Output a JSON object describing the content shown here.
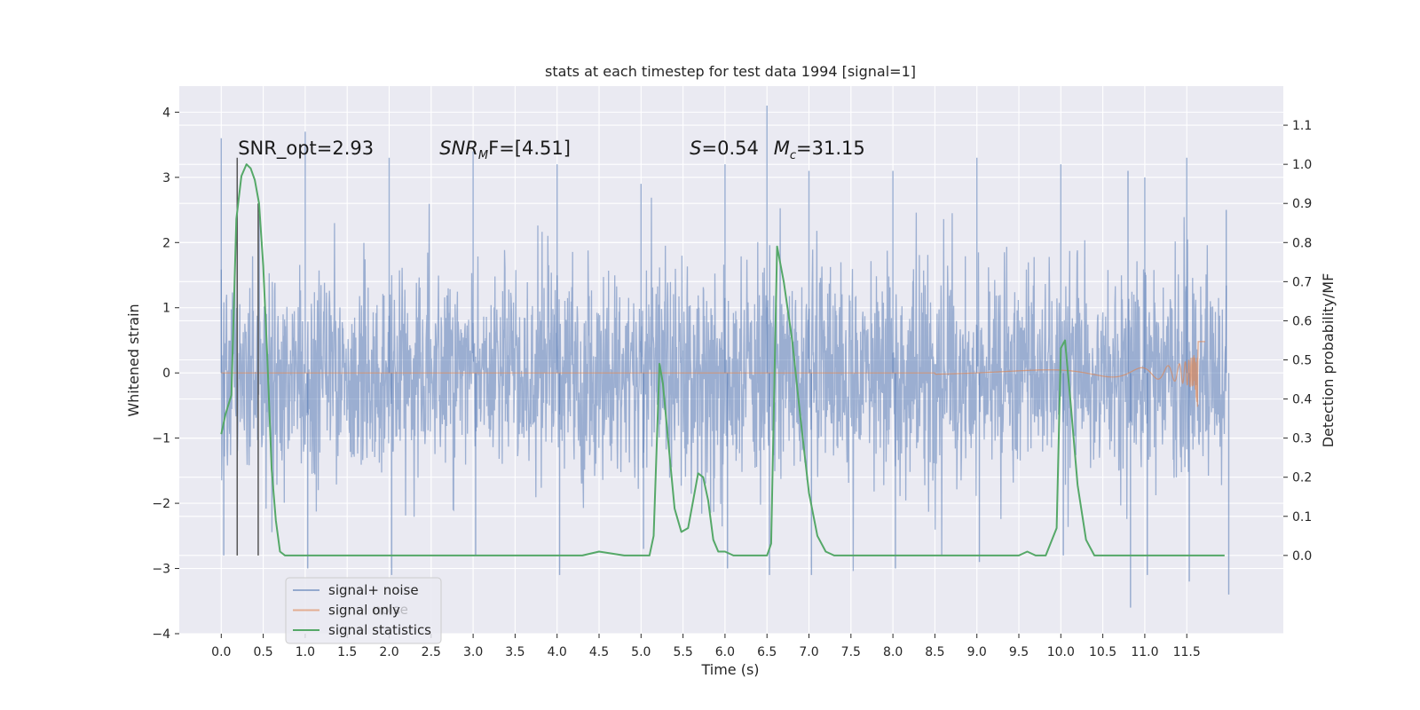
{
  "chart_data": {
    "type": "line",
    "title": "stats at each timestep for test data 1994 [signal=1]",
    "xlabel": "Time (s)",
    "ylabel": "Whitened strain",
    "ylabel_right": "Detection probability/MF",
    "xlim": [
      -0.5,
      12.65
    ],
    "ylim": [
      -4.0,
      4.4
    ],
    "ylim_right": [
      -0.2,
      1.2
    ],
    "x_ticks": [
      0.0,
      0.5,
      1.0,
      1.5,
      2.0,
      2.5,
      3.0,
      3.5,
      4.0,
      4.5,
      5.0,
      5.5,
      6.0,
      6.5,
      7.0,
      7.5,
      8.0,
      8.5,
      9.0,
      9.5,
      10.0,
      10.5,
      11.0,
      11.5
    ],
    "x_tick_labels": [
      "0.0",
      "0.5",
      "1.0",
      "1.5",
      "2.0",
      "2.5",
      "3.0",
      "3.5",
      "4.0",
      "4.5",
      "5.0",
      "5.5",
      "6.0",
      "6.5",
      "7.0",
      "7.5",
      "8.0",
      "8.5",
      "9.0",
      "9.5",
      "10.0",
      "10.5",
      "11.0",
      "11.5"
    ],
    "y_ticks": [
      -4,
      -3,
      -2,
      -1,
      0,
      1,
      2,
      3,
      4
    ],
    "y_tick_labels": [
      "−4",
      "−3",
      "−2",
      "−1",
      "0",
      "1",
      "2",
      "3",
      "4"
    ],
    "y_right_ticks": [
      0.0,
      0.1,
      0.2,
      0.3,
      0.4,
      0.5,
      0.6,
      0.7,
      0.8,
      0.9,
      1.0,
      1.1
    ],
    "y_right_tick_labels": [
      "0.0",
      "0.1",
      "0.2",
      "0.3",
      "0.4",
      "0.5",
      "0.6",
      "0.7",
      "0.8",
      "0.9",
      "1.0",
      "1.1"
    ],
    "grid": true,
    "legend_position": "lower-left",
    "series": [
      {
        "name": "signal+ noise",
        "color": "#4c72b0",
        "description": "dense whitened noise trace, 0.0–12.0 s",
        "envelope": {
          "x": [
            0.0,
            1.0,
            2.0,
            3.0,
            4.0,
            5.0,
            6.0,
            6.5,
            7.0,
            8.0,
            9.0,
            10.0,
            10.8,
            11.0,
            11.5,
            11.97
          ],
          "max": [
            3.6,
            3.7,
            3.3,
            3.4,
            3.2,
            2.9,
            3.2,
            4.1,
            3.1,
            3.1,
            3.3,
            3.2,
            3.1,
            3.0,
            3.3,
            2.5
          ],
          "min": [
            -2.8,
            -3.0,
            -3.1,
            -2.8,
            -3.1,
            -2.7,
            -3.0,
            -3.1,
            -3.1,
            -3.0,
            -2.9,
            -2.8,
            -3.6,
            -3.1,
            -3.2,
            -3.4
          ]
        }
      },
      {
        "name": "signal only",
        "color": "#dd8452",
        "description": "chirp signal, flat near 0 then growing amplitude up to ~0.65 near 11.65 s",
        "chirp": {
          "start": 8.5,
          "peak_time": 11.65,
          "peak_amplitude": 0.65,
          "end": 11.72
        }
      },
      {
        "name": "signal statistics",
        "color": "#55a868",
        "axis": "right",
        "x": [
          0.0,
          0.05,
          0.12,
          0.18,
          0.24,
          0.3,
          0.35,
          0.4,
          0.45,
          0.5,
          0.55,
          0.6,
          0.65,
          0.7,
          0.76,
          0.85,
          1.0,
          1.5,
          2.0,
          2.5,
          3.0,
          3.5,
          4.0,
          4.3,
          4.5,
          4.8,
          5.0,
          5.1,
          5.15,
          5.22,
          5.26,
          5.32,
          5.4,
          5.48,
          5.56,
          5.62,
          5.68,
          5.74,
          5.8,
          5.86,
          5.92,
          6.0,
          6.1,
          6.2,
          6.3,
          6.4,
          6.5,
          6.55,
          6.62,
          6.7,
          6.8,
          6.9,
          7.0,
          7.1,
          7.2,
          7.3,
          7.5,
          8.0,
          8.5,
          9.0,
          9.5,
          9.6,
          9.7,
          9.82,
          9.95,
          10.0,
          10.05,
          10.12,
          10.2,
          10.3,
          10.4,
          10.5,
          11.0,
          11.5,
          11.95
        ],
        "values": [
          0.31,
          0.36,
          0.41,
          0.86,
          0.97,
          1.0,
          0.99,
          0.96,
          0.9,
          0.74,
          0.5,
          0.22,
          0.09,
          0.01,
          0.0,
          0.0,
          0.0,
          0.0,
          0.0,
          0.0,
          0.0,
          0.0,
          0.0,
          0.0,
          0.01,
          0.0,
          0.0,
          0.0,
          0.05,
          0.49,
          0.44,
          0.3,
          0.12,
          0.06,
          0.07,
          0.14,
          0.21,
          0.2,
          0.14,
          0.04,
          0.01,
          0.01,
          0.0,
          0.0,
          0.0,
          0.0,
          0.0,
          0.03,
          0.79,
          0.7,
          0.55,
          0.35,
          0.16,
          0.05,
          0.01,
          0.0,
          0.0,
          0.0,
          0.0,
          0.0,
          0.0,
          0.01,
          0.0,
          0.0,
          0.07,
          0.53,
          0.55,
          0.38,
          0.18,
          0.04,
          0.0,
          0.0,
          0.0,
          0.0,
          0.0
        ]
      }
    ],
    "vertical_lines": [
      {
        "x": 0.19,
        "ymin": -2.8,
        "ymax": 3.3,
        "color": "#555555"
      },
      {
        "x": 0.44,
        "ymin": -2.8,
        "ymax": 2.6,
        "color": "#555555"
      }
    ],
    "annotations": [
      {
        "kind": "plain",
        "text": "SNR_opt=2.93",
        "x": 0.2,
        "y": 3.35
      },
      {
        "kind": "snrmf",
        "sym": "SNR",
        "sub": "M",
        "rest": "F=[4.51]",
        "x": 2.6,
        "y": 3.35
      },
      {
        "kind": "sym",
        "sym": "S",
        "rest": "=0.54",
        "x": 5.58,
        "y": 3.35
      },
      {
        "kind": "symsub",
        "sym": "M",
        "sub": "c",
        "rest": "=31.15",
        "x": 6.58,
        "y": 3.35
      }
    ]
  },
  "legend": {
    "items": [
      {
        "label": "signal+ noise",
        "color": "#4c72b0",
        "alpha": 0.55
      },
      {
        "label": "signal only",
        "color": "#dd8452",
        "alpha": 0.6
      },
      {
        "label": "signal statistics",
        "color": "#55a868",
        "alpha": 1.0
      }
    ],
    "ghost_text": "noise"
  },
  "colors": {
    "plot_background": "#eaeaf2",
    "grid": "#ffffff",
    "text": "#262626"
  }
}
